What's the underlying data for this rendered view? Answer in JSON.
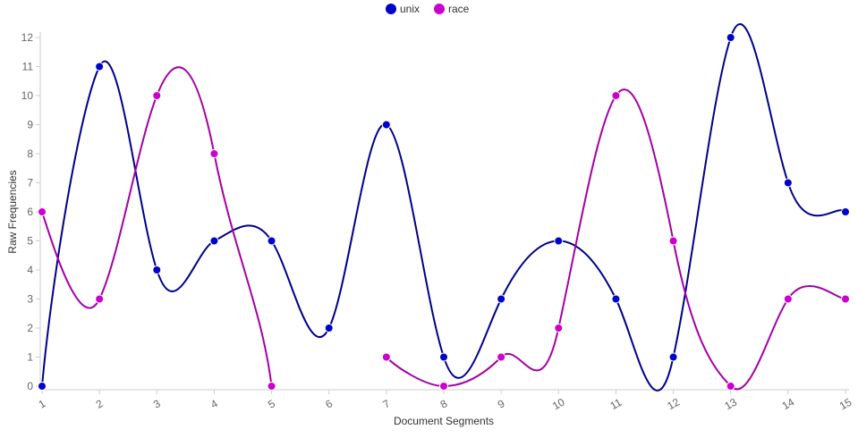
{
  "chart_data": {
    "type": "line",
    "xlabel": "Document Segments",
    "ylabel": "Raw Frequencies",
    "categories": [
      "1",
      "2",
      "3",
      "4",
      "5",
      "6",
      "7",
      "8",
      "9",
      "10",
      "11",
      "12",
      "13",
      "14",
      "15"
    ],
    "ylim": [
      0,
      12
    ],
    "yticks": [
      0,
      1,
      2,
      3,
      4,
      5,
      6,
      7,
      8,
      9,
      10,
      11,
      12
    ],
    "grid": false,
    "legend_position": "top-center",
    "series": [
      {
        "name": "unix",
        "color": "#0000cc",
        "line_color": "#00008b",
        "values": [
          0,
          11,
          4,
          5,
          5,
          2,
          9,
          1,
          3,
          5,
          3,
          1,
          12,
          7,
          6
        ]
      },
      {
        "name": "race",
        "color": "#cc00cc",
        "line_color": "#a400a4",
        "values": [
          6,
          3,
          10,
          8,
          0,
          null,
          1,
          0,
          1,
          2,
          10,
          5,
          0,
          3,
          3
        ],
        "points_only_zero": [
          false,
          false,
          false,
          false,
          false,
          false,
          false,
          false,
          false,
          false,
          false,
          false,
          false,
          false,
          false
        ]
      }
    ]
  }
}
